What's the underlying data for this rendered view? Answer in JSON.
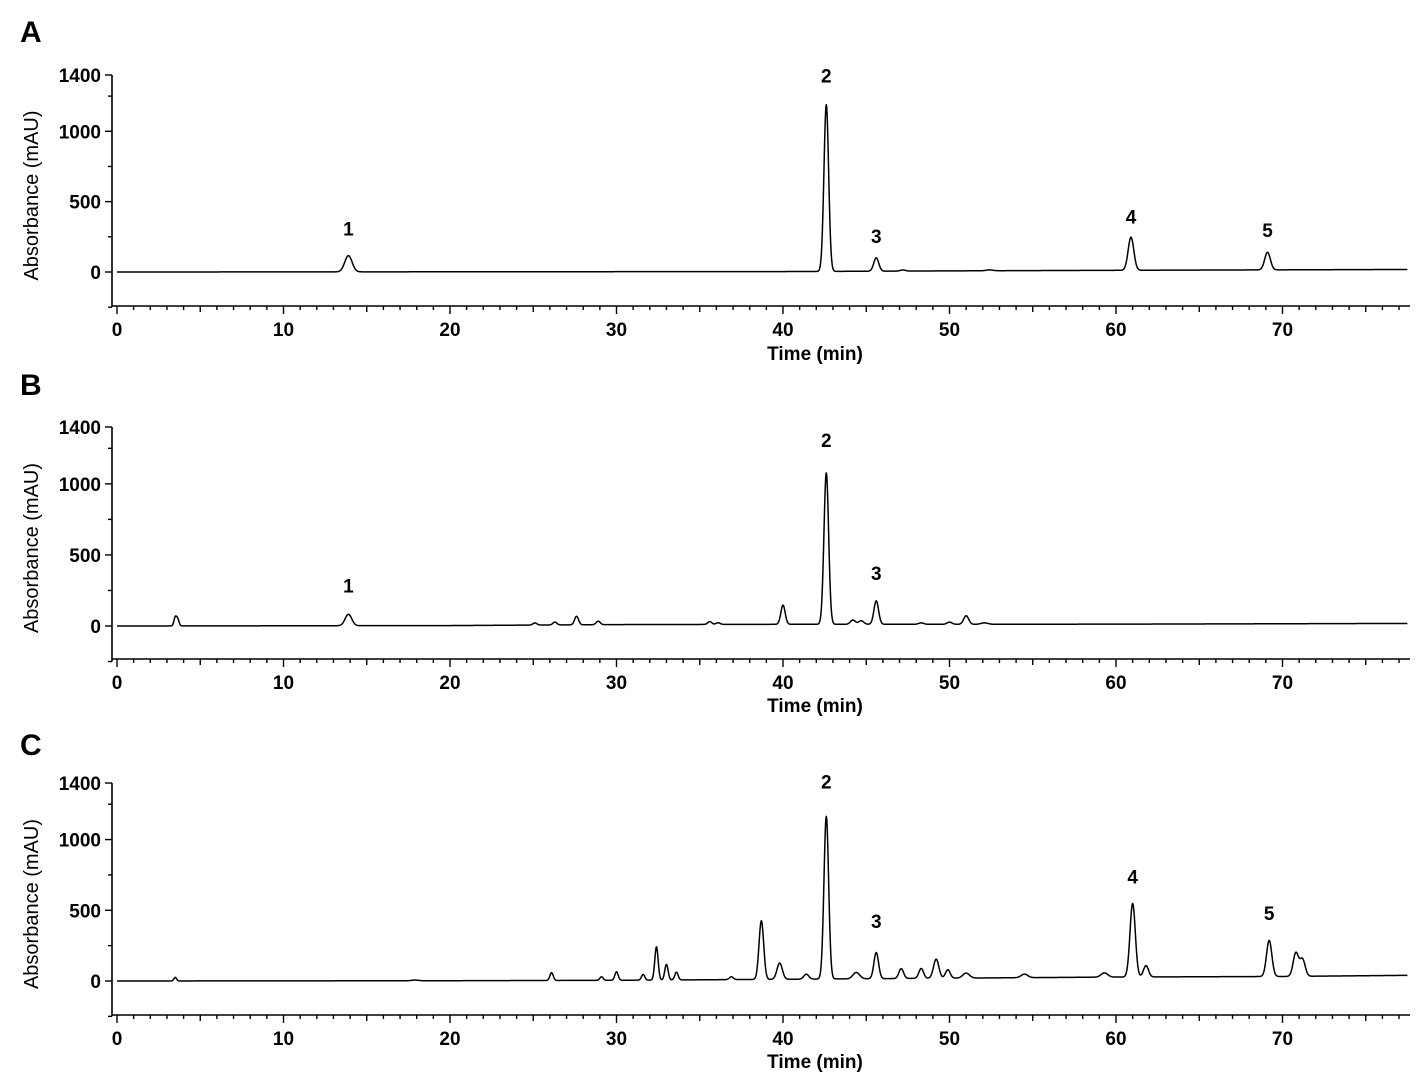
{
  "colors": {
    "trace": "#000000",
    "axes": "#000000",
    "background": "#ffffff"
  },
  "chart_data": [
    {
      "type": "line",
      "panel": "A",
      "xlabel": "Time (min)",
      "ylabel": "Absorbance (mAU)",
      "xlim": [
        0,
        77.5
      ],
      "ylim": [
        -250,
        1400
      ],
      "xticks": [
        0,
        10,
        20,
        30,
        40,
        50,
        60,
        70
      ],
      "yticks": [
        0,
        500,
        1000,
        1400
      ],
      "baseline": [
        [
          0,
          0
        ],
        [
          40,
          3
        ],
        [
          50,
          8
        ],
        [
          60,
          12
        ],
        [
          77.5,
          18
        ]
      ],
      "peaks": [
        {
          "t": 13.9,
          "h": 115,
          "w": 0.22
        },
        {
          "t": 42.6,
          "h": 1185,
          "w": 0.14
        },
        {
          "t": 45.6,
          "h": 95,
          "w": 0.15
        },
        {
          "t": 47.2,
          "h": 8,
          "w": 0.15
        },
        {
          "t": 52.4,
          "h": 6,
          "w": 0.2
        },
        {
          "t": 60.9,
          "h": 235,
          "w": 0.17
        },
        {
          "t": 69.1,
          "h": 125,
          "w": 0.17
        }
      ],
      "annotations": [
        {
          "label": "1",
          "t": 13.9,
          "y": 260
        },
        {
          "label": "2",
          "t": 42.6,
          "y": 1345
        },
        {
          "label": "3",
          "t": 45.6,
          "y": 205
        },
        {
          "label": "4",
          "t": 60.9,
          "y": 345
        },
        {
          "label": "5",
          "t": 69.1,
          "y": 250
        }
      ]
    },
    {
      "type": "line",
      "panel": "B",
      "xlabel": "Time (min)",
      "ylabel": "Absorbance (mAU)",
      "xlim": [
        0,
        77.5
      ],
      "ylim": [
        -250,
        1400
      ],
      "xticks": [
        0,
        10,
        20,
        30,
        40,
        50,
        60,
        70
      ],
      "yticks": [
        0,
        500,
        1000,
        1400
      ],
      "baseline": [
        [
          0,
          0
        ],
        [
          20,
          3
        ],
        [
          30,
          10
        ],
        [
          40,
          12
        ],
        [
          50,
          12
        ],
        [
          60,
          13
        ],
        [
          77.5,
          18
        ]
      ],
      "peaks": [
        {
          "t": 3.5,
          "h": 60,
          "w": 0.08
        },
        {
          "t": 3.65,
          "h": 45,
          "w": 0.08
        },
        {
          "t": 13.9,
          "h": 80,
          "w": 0.2
        },
        {
          "t": 25.1,
          "h": 15,
          "w": 0.12
        },
        {
          "t": 26.3,
          "h": 20,
          "w": 0.12
        },
        {
          "t": 27.6,
          "h": 60,
          "w": 0.12
        },
        {
          "t": 28.9,
          "h": 25,
          "w": 0.12
        },
        {
          "t": 35.6,
          "h": 20,
          "w": 0.12
        },
        {
          "t": 36.1,
          "h": 12,
          "w": 0.12
        },
        {
          "t": 40.0,
          "h": 135,
          "w": 0.13
        },
        {
          "t": 42.6,
          "h": 1065,
          "w": 0.14
        },
        {
          "t": 44.2,
          "h": 30,
          "w": 0.15
        },
        {
          "t": 44.7,
          "h": 25,
          "w": 0.15
        },
        {
          "t": 45.6,
          "h": 165,
          "w": 0.14
        },
        {
          "t": 48.3,
          "h": 10,
          "w": 0.15
        },
        {
          "t": 50.0,
          "h": 15,
          "w": 0.15
        },
        {
          "t": 51.0,
          "h": 60,
          "w": 0.15
        },
        {
          "t": 52.1,
          "h": 10,
          "w": 0.2
        }
      ],
      "annotations": [
        {
          "label": "1",
          "t": 13.9,
          "y": 235
        },
        {
          "label": "2",
          "t": 42.6,
          "y": 1260
        },
        {
          "label": "3",
          "t": 45.6,
          "y": 325
        }
      ]
    },
    {
      "type": "line",
      "panel": "C",
      "xlabel": "Time (min)",
      "ylabel": "Absorbance (mAU)",
      "xlim": [
        0,
        77.5
      ],
      "ylim": [
        -250,
        1400
      ],
      "xticks": [
        0,
        10,
        20,
        30,
        40,
        50,
        60,
        70
      ],
      "yticks": [
        0,
        500,
        1000,
        1400
      ],
      "baseline": [
        [
          0,
          0
        ],
        [
          20,
          2
        ],
        [
          30,
          5
        ],
        [
          40,
          12
        ],
        [
          50,
          20
        ],
        [
          60,
          28
        ],
        [
          70,
          32
        ],
        [
          77.5,
          40
        ]
      ],
      "peaks": [
        {
          "t": 3.5,
          "h": 25,
          "w": 0.08
        },
        {
          "t": 17.9,
          "h": 5,
          "w": 0.2
        },
        {
          "t": 26.1,
          "h": 55,
          "w": 0.1
        },
        {
          "t": 29.1,
          "h": 25,
          "w": 0.1
        },
        {
          "t": 30.0,
          "h": 60,
          "w": 0.1
        },
        {
          "t": 31.6,
          "h": 40,
          "w": 0.1
        },
        {
          "t": 32.4,
          "h": 235,
          "w": 0.1
        },
        {
          "t": 33.0,
          "h": 110,
          "w": 0.1
        },
        {
          "t": 33.6,
          "h": 55,
          "w": 0.1
        },
        {
          "t": 36.9,
          "h": 20,
          "w": 0.12
        },
        {
          "t": 38.7,
          "h": 415,
          "w": 0.14
        },
        {
          "t": 39.8,
          "h": 115,
          "w": 0.16
        },
        {
          "t": 41.4,
          "h": 35,
          "w": 0.15
        },
        {
          "t": 42.6,
          "h": 1150,
          "w": 0.14
        },
        {
          "t": 44.4,
          "h": 45,
          "w": 0.2
        },
        {
          "t": 45.6,
          "h": 185,
          "w": 0.14
        },
        {
          "t": 47.1,
          "h": 70,
          "w": 0.14
        },
        {
          "t": 48.3,
          "h": 70,
          "w": 0.14
        },
        {
          "t": 49.2,
          "h": 135,
          "w": 0.16
        },
        {
          "t": 49.9,
          "h": 60,
          "w": 0.14
        },
        {
          "t": 51.0,
          "h": 35,
          "w": 0.2
        },
        {
          "t": 54.5,
          "h": 25,
          "w": 0.2
        },
        {
          "t": 59.3,
          "h": 30,
          "w": 0.2
        },
        {
          "t": 61.0,
          "h": 520,
          "w": 0.16
        },
        {
          "t": 61.8,
          "h": 80,
          "w": 0.15
        },
        {
          "t": 69.2,
          "h": 255,
          "w": 0.16
        },
        {
          "t": 70.8,
          "h": 165,
          "w": 0.16
        },
        {
          "t": 71.2,
          "h": 120,
          "w": 0.16
        }
      ],
      "annotations": [
        {
          "label": "2",
          "t": 42.6,
          "y": 1360
        },
        {
          "label": "3",
          "t": 45.6,
          "y": 375
        },
        {
          "label": "4",
          "t": 61.0,
          "y": 690
        },
        {
          "label": "5",
          "t": 69.2,
          "y": 430
        }
      ]
    }
  ]
}
